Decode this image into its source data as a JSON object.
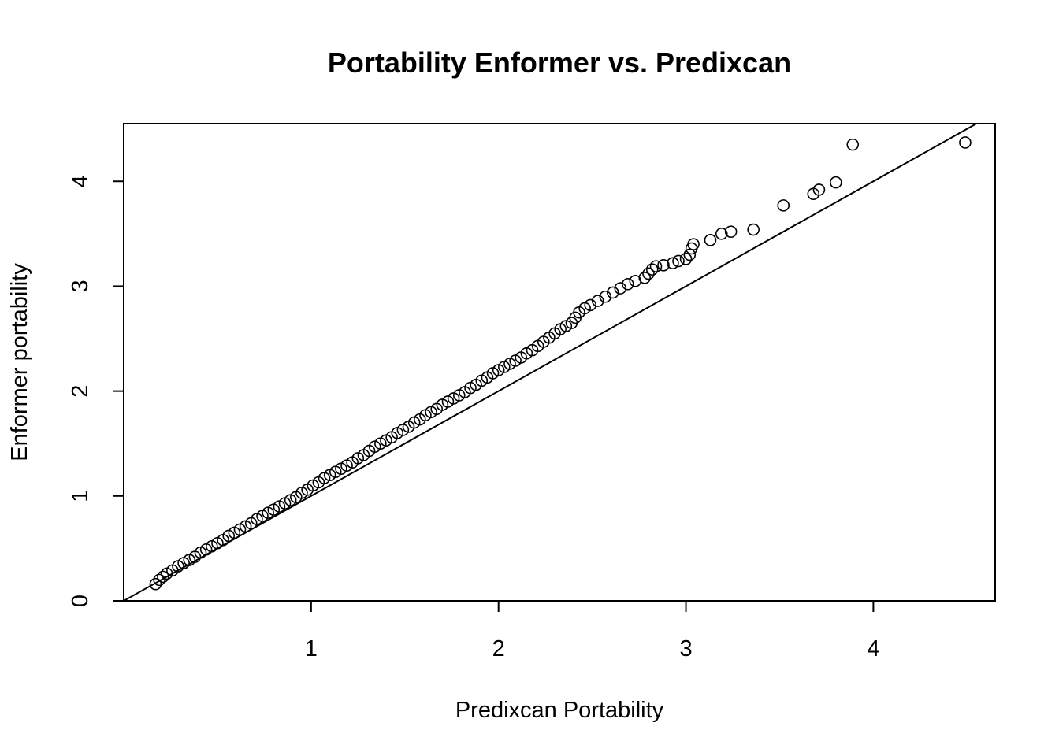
{
  "chart_data": {
    "type": "scatter",
    "title": "Portability Enformer vs. Predixcan",
    "xlabel": "Predixcan Portability",
    "ylabel": "Enformer portability",
    "xlim": [
      0.0,
      4.65
    ],
    "ylim": [
      0.0,
      4.55
    ],
    "xticks": [
      1,
      2,
      3,
      4
    ],
    "yticks": [
      0,
      1,
      2,
      3,
      4
    ],
    "grid": false,
    "legend": "none",
    "reference_line": {
      "type": "identity",
      "slope": 1,
      "intercept": 0
    },
    "marker": "open-circle",
    "color": "#000000",
    "points": [
      [
        0.17,
        0.16
      ],
      [
        0.19,
        0.2
      ],
      [
        0.21,
        0.23
      ],
      [
        0.23,
        0.26
      ],
      [
        0.26,
        0.29
      ],
      [
        0.29,
        0.33
      ],
      [
        0.32,
        0.36
      ],
      [
        0.35,
        0.39
      ],
      [
        0.38,
        0.42
      ],
      [
        0.41,
        0.46
      ],
      [
        0.44,
        0.49
      ],
      [
        0.47,
        0.52
      ],
      [
        0.5,
        0.55
      ],
      [
        0.53,
        0.58
      ],
      [
        0.56,
        0.62
      ],
      [
        0.59,
        0.65
      ],
      [
        0.62,
        0.68
      ],
      [
        0.65,
        0.71
      ],
      [
        0.68,
        0.74
      ],
      [
        0.71,
        0.78
      ],
      [
        0.74,
        0.81
      ],
      [
        0.77,
        0.84
      ],
      [
        0.8,
        0.87
      ],
      [
        0.83,
        0.9
      ],
      [
        0.86,
        0.93
      ],
      [
        0.89,
        0.96
      ],
      [
        0.92,
        0.99
      ],
      [
        0.95,
        1.03
      ],
      [
        0.98,
        1.06
      ],
      [
        1.01,
        1.1
      ],
      [
        1.04,
        1.13
      ],
      [
        1.07,
        1.17
      ],
      [
        1.1,
        1.2
      ],
      [
        1.13,
        1.23
      ],
      [
        1.16,
        1.26
      ],
      [
        1.19,
        1.29
      ],
      [
        1.22,
        1.32
      ],
      [
        1.25,
        1.36
      ],
      [
        1.28,
        1.39
      ],
      [
        1.31,
        1.43
      ],
      [
        1.34,
        1.47
      ],
      [
        1.37,
        1.5
      ],
      [
        1.4,
        1.53
      ],
      [
        1.43,
        1.56
      ],
      [
        1.46,
        1.6
      ],
      [
        1.49,
        1.63
      ],
      [
        1.52,
        1.66
      ],
      [
        1.55,
        1.7
      ],
      [
        1.58,
        1.73
      ],
      [
        1.61,
        1.77
      ],
      [
        1.64,
        1.8
      ],
      [
        1.67,
        1.83
      ],
      [
        1.7,
        1.87
      ],
      [
        1.73,
        1.9
      ],
      [
        1.76,
        1.93
      ],
      [
        1.79,
        1.96
      ],
      [
        1.82,
        1.99
      ],
      [
        1.85,
        2.03
      ],
      [
        1.88,
        2.06
      ],
      [
        1.91,
        2.1
      ],
      [
        1.94,
        2.13
      ],
      [
        1.97,
        2.17
      ],
      [
        2.0,
        2.2
      ],
      [
        2.03,
        2.23
      ],
      [
        2.06,
        2.26
      ],
      [
        2.09,
        2.29
      ],
      [
        2.12,
        2.32
      ],
      [
        2.15,
        2.36
      ],
      [
        2.18,
        2.39
      ],
      [
        2.21,
        2.43
      ],
      [
        2.24,
        2.47
      ],
      [
        2.27,
        2.51
      ],
      [
        2.3,
        2.55
      ],
      [
        2.33,
        2.59
      ],
      [
        2.36,
        2.62
      ],
      [
        2.39,
        2.65
      ],
      [
        2.41,
        2.7
      ],
      [
        2.43,
        2.75
      ],
      [
        2.46,
        2.79
      ],
      [
        2.49,
        2.82
      ],
      [
        2.53,
        2.86
      ],
      [
        2.57,
        2.9
      ],
      [
        2.61,
        2.94
      ],
      [
        2.65,
        2.98
      ],
      [
        2.69,
        3.02
      ],
      [
        2.73,
        3.05
      ],
      [
        2.78,
        3.08
      ],
      [
        2.8,
        3.12
      ],
      [
        2.82,
        3.16
      ],
      [
        2.84,
        3.19
      ],
      [
        2.88,
        3.2
      ],
      [
        2.93,
        3.22
      ],
      [
        2.96,
        3.24
      ],
      [
        3.0,
        3.26
      ],
      [
        3.02,
        3.3
      ],
      [
        3.03,
        3.36
      ],
      [
        3.04,
        3.4
      ],
      [
        3.13,
        3.44
      ],
      [
        3.19,
        3.5
      ],
      [
        3.24,
        3.52
      ],
      [
        3.36,
        3.54
      ],
      [
        3.52,
        3.77
      ],
      [
        3.68,
        3.88
      ],
      [
        3.71,
        3.92
      ],
      [
        3.8,
        3.99
      ],
      [
        3.89,
        4.35
      ],
      [
        4.49,
        4.37
      ]
    ]
  }
}
